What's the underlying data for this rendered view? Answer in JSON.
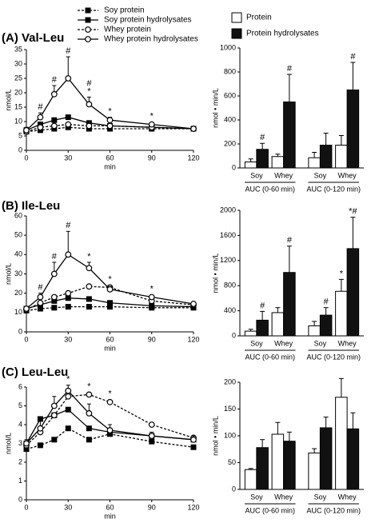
{
  "chart_data": [
    {
      "type": "line",
      "title": "(A) Val-Leu",
      "x_label": "min",
      "y_label": "nmol/L",
      "x": [
        0,
        10,
        20,
        30,
        45,
        60,
        90,
        120
      ],
      "xlim": [
        0,
        120
      ],
      "xticks": [
        0,
        30,
        60,
        90,
        120
      ],
      "ylim": [
        0,
        35
      ],
      "yticks": [
        0,
        5,
        10,
        15,
        20,
        25,
        30,
        35
      ],
      "legend": true,
      "series": [
        {
          "name": "Soy protein",
          "color": "#000",
          "dash": true,
          "marker": "square",
          "marker_fill": "#000",
          "values": [
            6.5,
            7,
            7.5,
            8,
            7.5,
            7.5,
            7.5,
            7.5
          ]
        },
        {
          "name": "Soy protein hydrolysates",
          "color": "#000",
          "dash": false,
          "marker": "square",
          "marker_fill": "#000",
          "values": [
            7,
            9,
            10.5,
            11.5,
            9.5,
            8.5,
            8,
            7.5
          ]
        },
        {
          "name": "Whey protein",
          "color": "#000",
          "dash": true,
          "marker": "circle",
          "marker_fill": "#fff",
          "values": [
            6.5,
            8,
            8.5,
            9,
            8.5,
            8.5,
            8,
            7.5
          ]
        },
        {
          "name": "Whey protein hydrolysates",
          "color": "#000",
          "dash": false,
          "marker": "circle",
          "marker_fill": "#fff",
          "values": [
            7,
            11.5,
            19.5,
            25,
            16,
            10.5,
            9,
            7.5
          ],
          "errors": [
            1,
            1.5,
            3,
            7.5,
            2.5,
            1,
            0.5,
            0.5
          ],
          "annotations": [
            null,
            "#",
            "#",
            "#",
            [
              "#",
              "*"
            ],
            "*",
            "*",
            null
          ]
        }
      ]
    },
    {
      "type": "bar",
      "y_label": "nmol • min/L",
      "categories": [
        "Soy",
        "Whey",
        "Soy",
        "Whey"
      ],
      "groups": [
        "AUC (0-60 min)",
        "AUC (0-120 min)"
      ],
      "ylim": [
        0,
        1000
      ],
      "yticks": [
        0,
        200,
        400,
        600,
        800,
        1000
      ],
      "legend": true,
      "series": [
        {
          "name": "Protein",
          "color": "#fff",
          "values": [
            50,
            95,
            85,
            190
          ],
          "errors": [
            25,
            20,
            45,
            80
          ]
        },
        {
          "name": "Protein hydrolysates",
          "color": "#111",
          "values": [
            155,
            550,
            190,
            650
          ],
          "errors": [
            50,
            230,
            100,
            230
          ],
          "annotations": [
            "#",
            "#",
            null,
            "#"
          ]
        }
      ]
    },
    {
      "type": "line",
      "title": "(B) Ile-Leu",
      "x_label": "min",
      "y_label": "nmol/L",
      "x": [
        0,
        10,
        20,
        30,
        45,
        60,
        90,
        120
      ],
      "xlim": [
        0,
        120
      ],
      "xticks": [
        0,
        30,
        60,
        90,
        120
      ],
      "ylim": [
        0,
        60
      ],
      "yticks": [
        0,
        10,
        20,
        30,
        40,
        50,
        60
      ],
      "series": [
        {
          "color": "#000",
          "dash": true,
          "marker": "square",
          "marker_fill": "#000",
          "values": [
            11,
            12,
            12.5,
            13,
            13,
            13,
            12.5,
            12.5
          ]
        },
        {
          "color": "#000",
          "dash": false,
          "marker": "square",
          "marker_fill": "#000",
          "values": [
            12,
            14,
            16,
            17.5,
            17,
            15,
            13.5,
            13
          ]
        },
        {
          "color": "#000",
          "dash": true,
          "marker": "circle",
          "marker_fill": "#fff",
          "values": [
            11.5,
            15,
            18,
            20,
            23.5,
            23,
            16,
            14
          ],
          "annotations": [
            null,
            null,
            null,
            null,
            null,
            "*",
            null,
            null
          ]
        },
        {
          "color": "#000",
          "dash": false,
          "marker": "circle",
          "marker_fill": "#fff",
          "values": [
            12,
            18,
            30,
            40,
            33,
            22,
            18,
            14.5
          ],
          "errors": [
            1,
            2,
            6,
            12,
            3,
            1.5,
            1,
            0.5
          ],
          "annotations": [
            null,
            "#",
            "#",
            "#",
            "*",
            null,
            "*",
            null
          ]
        }
      ]
    },
    {
      "type": "bar",
      "y_label": "nmol • min/L",
      "categories": [
        "Soy",
        "Whey",
        "Soy",
        "Whey"
      ],
      "groups": [
        "AUC (0-60 min)",
        "AUC (0-120 min)"
      ],
      "ylim": [
        0,
        2000
      ],
      "yticks": [
        0,
        400,
        800,
        1200,
        1600,
        2000
      ],
      "series": [
        {
          "color": "#fff",
          "values": [
            75,
            370,
            160,
            710
          ],
          "errors": [
            30,
            80,
            70,
            190
          ],
          "annotations": [
            null,
            null,
            null,
            "*"
          ]
        },
        {
          "color": "#111",
          "values": [
            250,
            1010,
            330,
            1390
          ],
          "errors": [
            140,
            420,
            120,
            500
          ],
          "annotations": [
            "#",
            "#",
            "#",
            "*#"
          ]
        }
      ]
    },
    {
      "type": "line",
      "title": "(C) Leu-Leu",
      "x_label": "min",
      "y_label": "nmol/L",
      "x": [
        0,
        10,
        20,
        30,
        45,
        60,
        90,
        120
      ],
      "xlim": [
        0,
        120
      ],
      "xticks": [
        0,
        30,
        60,
        90,
        120
      ],
      "ylim": [
        0,
        6
      ],
      "yticks": [
        0,
        1,
        2,
        3,
        4,
        5,
        6
      ],
      "series": [
        {
          "color": "#000",
          "dash": true,
          "marker": "square",
          "marker_fill": "#000",
          "values": [
            2.7,
            2.9,
            3.2,
            3.8,
            3.2,
            3.5,
            3.1,
            2.8
          ]
        },
        {
          "color": "#000",
          "dash": false,
          "marker": "square",
          "marker_fill": "#000",
          "values": [
            3.0,
            4.3,
            4.5,
            4.8,
            3.8,
            3.6,
            3.4,
            3.2
          ]
        },
        {
          "color": "#000",
          "dash": true,
          "marker": "circle",
          "marker_fill": "#fff",
          "values": [
            2.9,
            3.6,
            4.5,
            5.5,
            5.6,
            5.2,
            4.0,
            3.3
          ],
          "annotations": [
            null,
            null,
            null,
            null,
            "*",
            "*",
            null,
            null
          ]
        },
        {
          "color": "#000",
          "dash": false,
          "marker": "circle",
          "marker_fill": "#fff",
          "values": [
            3.0,
            3.8,
            5.0,
            5.8,
            4.6,
            3.7,
            3.4,
            3.2
          ],
          "errors": [
            0.2,
            0.4,
            0.5,
            0.3,
            0.5,
            0.3,
            0.2,
            0.2
          ],
          "annotations": [
            null,
            null,
            null,
            "*",
            null,
            null,
            null,
            null
          ]
        }
      ]
    },
    {
      "type": "bar",
      "y_label": "nmol • min/L",
      "categories": [
        "Soy",
        "Whey",
        "Soy",
        "Whey"
      ],
      "groups": [
        "AUC (0-60 min)",
        "AUC (0-120 min)"
      ],
      "ylim": [
        0,
        200
      ],
      "yticks": [
        0,
        50,
        100,
        150,
        200
      ],
      "series": [
        {
          "color": "#fff",
          "values": [
            37,
            103,
            68,
            172
          ],
          "errors": [
            2,
            22,
            8,
            35
          ]
        },
        {
          "color": "#111",
          "values": [
            78,
            90,
            115,
            113
          ],
          "errors": [
            15,
            17,
            20,
            30
          ]
        }
      ]
    }
  ]
}
